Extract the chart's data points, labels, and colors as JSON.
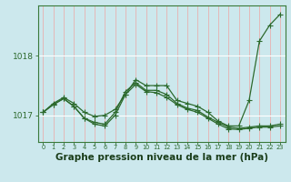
{
  "background_color": "#cce8ed",
  "plot_bg_color": "#cce8ed",
  "line_color": "#2d6a2d",
  "grid_color_v": "#e8b0b0",
  "grid_color_h": "#ffffff",
  "xlabel": "Graphe pression niveau de la mer (hPa)",
  "xlabel_fontsize": 7.5,
  "ylabel_ticks": [
    1017,
    1018
  ],
  "xlim": [
    -0.5,
    23.5
  ],
  "ylim": [
    1016.55,
    1018.85
  ],
  "xticks": [
    0,
    1,
    2,
    3,
    4,
    5,
    6,
    7,
    8,
    9,
    10,
    11,
    12,
    13,
    14,
    15,
    16,
    17,
    18,
    19,
    20,
    21,
    22,
    23
  ],
  "series1_x": [
    0,
    1,
    2,
    3,
    4,
    5,
    6,
    7,
    8,
    9,
    10,
    11,
    12,
    13,
    14,
    15,
    16,
    17,
    18,
    19,
    20,
    21,
    22,
    23
  ],
  "series1_y": [
    1017.05,
    1017.2,
    1017.3,
    1017.2,
    1017.05,
    1016.98,
    1017.0,
    1017.1,
    1017.35,
    1017.6,
    1017.5,
    1017.5,
    1017.5,
    1017.25,
    1017.2,
    1017.15,
    1017.05,
    1016.9,
    1016.82,
    1016.82,
    1017.25,
    1018.25,
    1018.52,
    1018.7
  ],
  "series2_x": [
    0,
    1,
    2,
    3,
    4,
    5,
    6,
    7,
    8,
    9,
    10,
    11,
    12,
    13,
    14,
    15,
    16,
    17,
    18,
    19,
    20,
    21,
    22,
    23
  ],
  "series2_y": [
    1017.05,
    1017.18,
    1017.28,
    1017.15,
    1016.95,
    1016.88,
    1016.85,
    1017.05,
    1017.4,
    1017.55,
    1017.42,
    1017.42,
    1017.35,
    1017.2,
    1017.12,
    1017.08,
    1016.97,
    1016.88,
    1016.8,
    1016.78,
    1016.8,
    1016.82,
    1016.82,
    1016.85
  ],
  "series3_x": [
    0,
    1,
    2,
    3,
    4,
    5,
    6,
    7,
    8,
    9,
    10,
    11,
    12,
    13,
    14,
    15,
    16,
    17,
    18,
    19,
    20,
    21,
    22,
    23
  ],
  "series3_y": [
    1017.05,
    1017.18,
    1017.28,
    1017.15,
    1016.95,
    1016.85,
    1016.82,
    1017.0,
    1017.35,
    1017.52,
    1017.4,
    1017.38,
    1017.3,
    1017.18,
    1017.1,
    1017.05,
    1016.95,
    1016.85,
    1016.77,
    1016.76,
    1016.78,
    1016.8,
    1016.8,
    1016.82
  ]
}
